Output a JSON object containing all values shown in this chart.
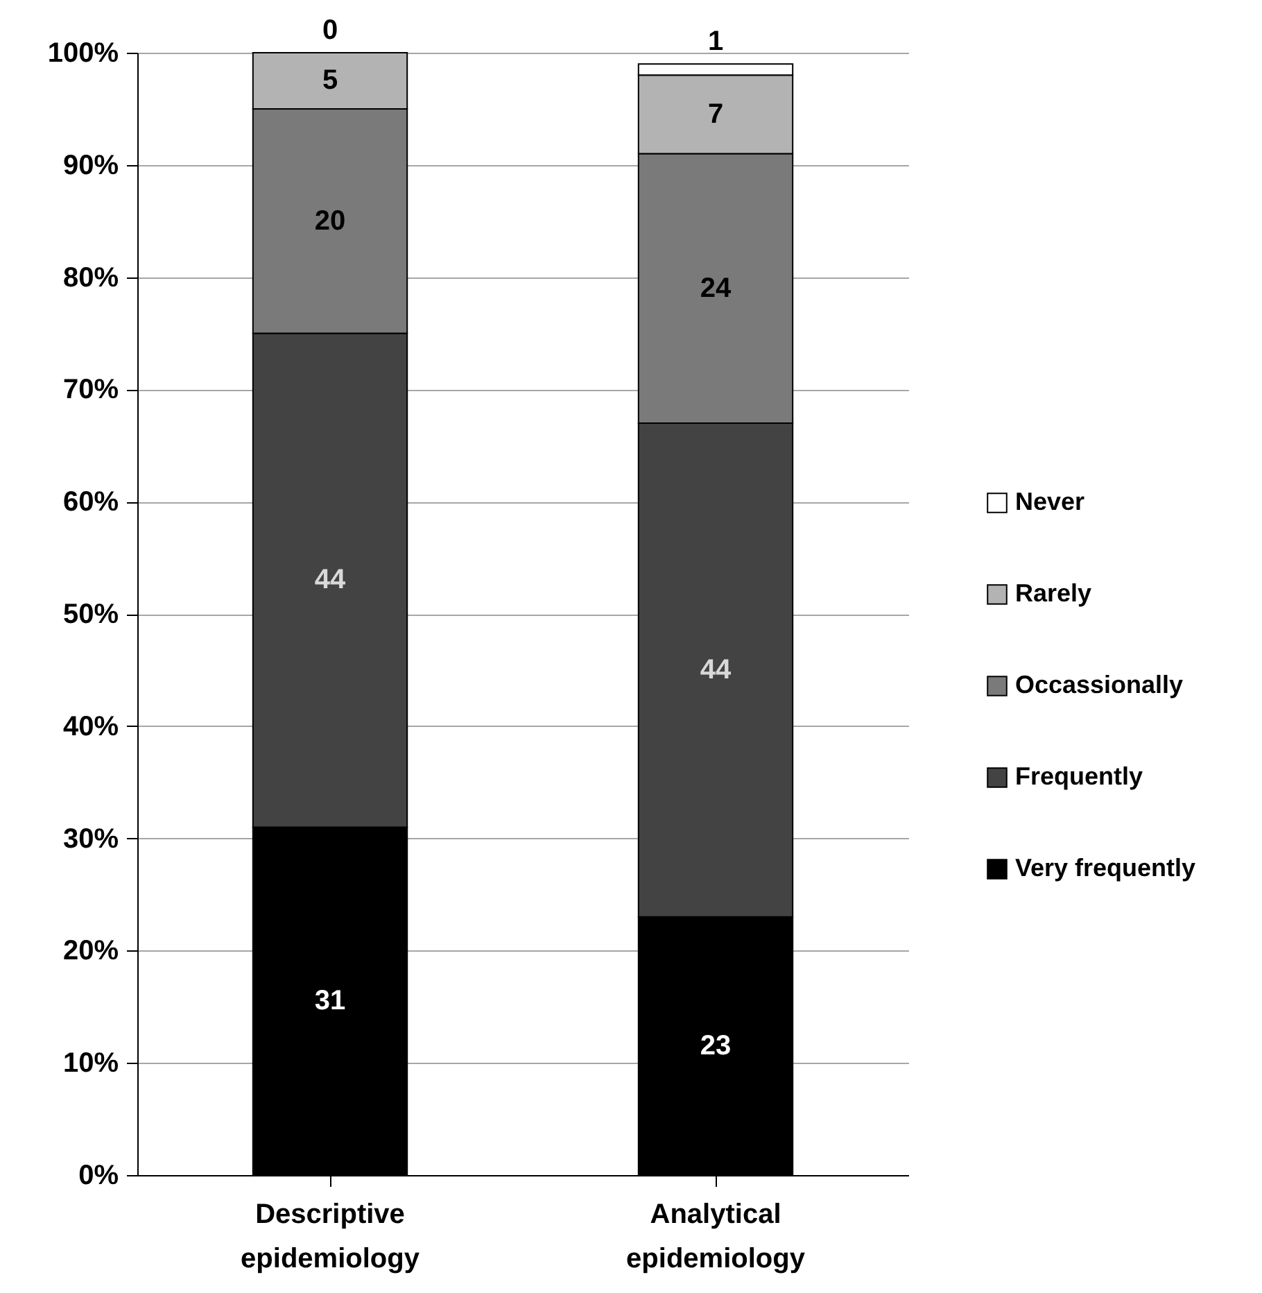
{
  "chart_data": {
    "type": "bar",
    "stacked": true,
    "categories": [
      "Descriptive epidemiology",
      "Analytical epidemiology"
    ],
    "series": [
      {
        "name": "Very frequently",
        "color": "#000000",
        "values": [
          31,
          23
        ]
      },
      {
        "name": "Frequently",
        "color": "#434343",
        "values": [
          44,
          44
        ]
      },
      {
        "name": "Occassionally",
        "color": "#7a7a7a",
        "values": [
          20,
          24
        ]
      },
      {
        "name": "Rarely",
        "color": "#b3b3b3",
        "values": [
          5,
          7
        ]
      },
      {
        "name": "Never",
        "color": "#ffffff",
        "values": [
          0,
          1
        ]
      }
    ],
    "ylim": [
      0,
      100
    ],
    "yticks": [
      {
        "value": 0,
        "label": "0%"
      },
      {
        "value": 10,
        "label": "10%"
      },
      {
        "value": 20,
        "label": "20%"
      },
      {
        "value": 30,
        "label": "30%"
      },
      {
        "value": 40,
        "label": "40%"
      },
      {
        "value": 50,
        "label": "50%"
      },
      {
        "value": 60,
        "label": "60%"
      },
      {
        "value": 70,
        "label": "70%"
      },
      {
        "value": 80,
        "label": "80%"
      },
      {
        "value": 90,
        "label": "90%"
      },
      {
        "value": 100,
        "label": "100%"
      }
    ],
    "grid": "y",
    "legend": "right",
    "data_labels": true
  }
}
